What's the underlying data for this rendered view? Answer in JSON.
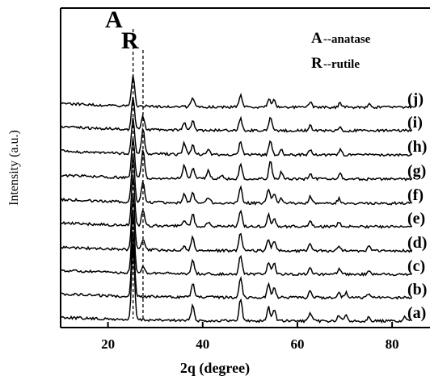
{
  "chart_data": {
    "type": "line",
    "title": "",
    "xlabel": "2q (degree)",
    "ylabel": "Intensity (a.u.)",
    "xlim": [
      10,
      88
    ],
    "xticks": [
      20,
      40,
      60,
      80
    ],
    "xtick_labels": [
      "20",
      "40",
      "60",
      "80"
    ],
    "y_ticks_shown": false,
    "grid": false,
    "reference_lines": [
      {
        "label": "A",
        "x": 25.3,
        "style": "dashed"
      },
      {
        "label": "R",
        "x": 27.4,
        "style": "dashed"
      }
    ],
    "legend": {
      "placement": "top-right",
      "entries": [
        {
          "key": "A",
          "text": "--anatase"
        },
        {
          "key": "R",
          "text": "--rutile"
        }
      ]
    },
    "series": [
      {
        "name": "(a)",
        "peaks": [
          [
            25.3,
            92
          ],
          [
            37.9,
            19
          ],
          [
            48.0,
            27
          ],
          [
            53.9,
            17
          ],
          [
            55.1,
            15
          ],
          [
            62.7,
            10
          ],
          [
            68.8,
            7
          ],
          [
            70.3,
            7
          ],
          [
            75.1,
            6
          ],
          [
            82.7,
            5
          ]
        ]
      },
      {
        "name": "(b)",
        "peaks": [
          [
            25.3,
            80
          ],
          [
            37.9,
            17
          ],
          [
            48.0,
            25
          ],
          [
            53.9,
            16
          ],
          [
            55.1,
            13
          ],
          [
            62.7,
            9
          ],
          [
            68.8,
            6
          ],
          [
            70.3,
            6
          ],
          [
            75.1,
            5
          ]
        ]
      },
      {
        "name": "(c)",
        "peaks": [
          [
            25.3,
            76
          ],
          [
            27.4,
            7
          ],
          [
            37.9,
            17
          ],
          [
            48.0,
            23
          ],
          [
            53.9,
            15
          ],
          [
            55.1,
            13
          ],
          [
            62.7,
            9
          ],
          [
            68.8,
            6
          ],
          [
            75.1,
            5
          ]
        ]
      },
      {
        "name": "(d)",
        "peaks": [
          [
            25.3,
            70
          ],
          [
            27.4,
            12
          ],
          [
            36.1,
            6
          ],
          [
            37.9,
            16
          ],
          [
            48.0,
            22
          ],
          [
            53.9,
            15
          ],
          [
            55.1,
            12
          ],
          [
            62.7,
            8
          ],
          [
            68.8,
            6
          ],
          [
            75.1,
            5
          ]
        ]
      },
      {
        "name": "(e)",
        "peaks": [
          [
            25.3,
            64
          ],
          [
            27.4,
            20
          ],
          [
            36.1,
            8
          ],
          [
            37.9,
            15
          ],
          [
            41.2,
            5
          ],
          [
            48.0,
            20
          ],
          [
            53.9,
            16
          ],
          [
            55.1,
            11
          ],
          [
            62.7,
            8
          ],
          [
            68.8,
            6
          ]
        ]
      },
      {
        "name": "(f)",
        "peaks": [
          [
            25.3,
            58
          ],
          [
            27.4,
            26
          ],
          [
            36.1,
            11
          ],
          [
            37.9,
            14
          ],
          [
            41.2,
            7
          ],
          [
            48.0,
            19
          ],
          [
            53.9,
            17
          ],
          [
            55.1,
            11
          ],
          [
            56.6,
            6
          ],
          [
            62.7,
            8
          ],
          [
            68.8,
            6
          ]
        ]
      },
      {
        "name": "(g)",
        "peaks": [
          [
            25.3,
            50
          ],
          [
            27.4,
            35
          ],
          [
            36.1,
            17
          ],
          [
            37.9,
            13
          ],
          [
            41.2,
            10
          ],
          [
            44.0,
            4
          ],
          [
            48.0,
            17
          ],
          [
            54.3,
            22
          ],
          [
            56.6,
            8
          ],
          [
            62.7,
            7
          ],
          [
            69.0,
            7
          ]
        ]
      },
      {
        "name": "(h)",
        "peaks": [
          [
            25.3,
            44
          ],
          [
            27.4,
            30
          ],
          [
            36.1,
            14
          ],
          [
            37.9,
            12
          ],
          [
            41.2,
            8
          ],
          [
            48.0,
            16
          ],
          [
            54.3,
            19
          ],
          [
            56.6,
            7
          ],
          [
            62.7,
            7
          ],
          [
            69.0,
            6
          ]
        ]
      },
      {
        "name": "(i)",
        "peaks": [
          [
            25.3,
            40
          ],
          [
            27.4,
            16
          ],
          [
            36.1,
            9
          ],
          [
            37.9,
            12
          ],
          [
            48.0,
            15
          ],
          [
            54.3,
            15
          ],
          [
            62.7,
            6
          ],
          [
            69.0,
            5
          ]
        ]
      },
      {
        "name": "(j)",
        "peaks": [
          [
            25.3,
            38
          ],
          [
            37.9,
            12
          ],
          [
            48.0,
            14
          ],
          [
            54.0,
            11
          ],
          [
            55.1,
            9
          ],
          [
            62.7,
            6
          ],
          [
            69.0,
            5
          ],
          [
            75.1,
            4
          ]
        ]
      }
    ]
  }
}
